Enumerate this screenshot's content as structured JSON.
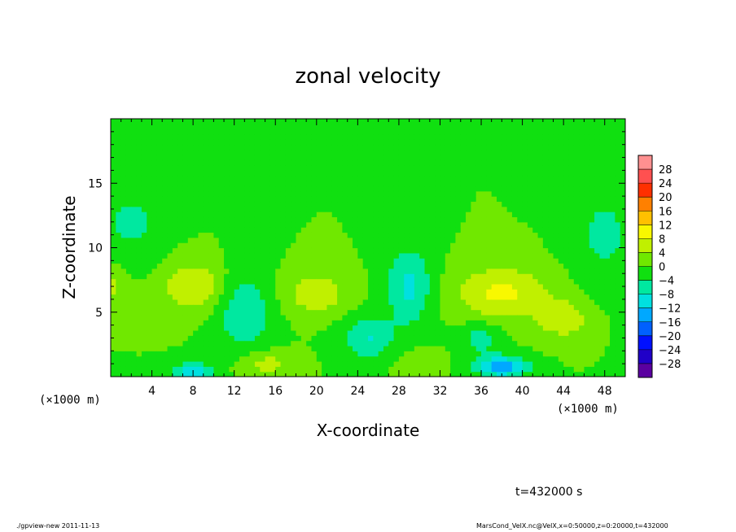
{
  "chart_data": {
    "type": "heatmap",
    "title": "zonal velocity",
    "xlabel": "X-coordinate",
    "ylabel": "Z-coordinate",
    "x_unit_left": "(×1000 m)",
    "x_unit_right": "(×1000 m)",
    "xlim": [
      0,
      50
    ],
    "ylim": [
      0,
      20
    ],
    "x_ticks": [
      4,
      8,
      12,
      16,
      20,
      24,
      28,
      32,
      36,
      40,
      44,
      48
    ],
    "x_tick_labels": [
      "4",
      "8",
      "12",
      "16",
      "20",
      "24",
      "28",
      "32",
      "36",
      "40",
      "44",
      "48"
    ],
    "y_ticks": [
      5,
      10,
      15
    ],
    "y_tick_labels": [
      "5",
      "10",
      "15"
    ],
    "time_label": "t=432000 s",
    "colorbar": {
      "levels": [
        -28,
        -24,
        -20,
        -16,
        -12,
        -8,
        -4,
        0,
        4,
        8,
        12,
        16,
        20,
        24,
        28
      ],
      "labels": [
        "28",
        "24",
        "20",
        "16",
        "12",
        "8",
        "4",
        "0",
        "−4",
        "−8",
        "−12",
        "−16",
        "−20",
        "−24",
        "−28"
      ],
      "colors": [
        "#5a00a0",
        "#2000c8",
        "#0010ff",
        "#0060ff",
        "#00a8ff",
        "#00e0e0",
        "#00e8a0",
        "#10e010",
        "#70e800",
        "#c0f000",
        "#f8f800",
        "#ffc000",
        "#ff8000",
        "#ff3000",
        "#ff5050",
        "#ff9090"
      ]
    },
    "field_features": [
      {
        "x": 8,
        "z": 7,
        "u": 8,
        "sx": 3,
        "sz": 1.8
      },
      {
        "x": 20,
        "z": 6.5,
        "u": 7,
        "sx": 3,
        "sz": 1.6
      },
      {
        "x": 38,
        "z": 6.5,
        "u": 9,
        "sx": 4.5,
        "sz": 2
      },
      {
        "x": 44,
        "z": 4.5,
        "u": 7,
        "sx": 2.5,
        "sz": 1.5
      },
      {
        "x": 15,
        "z": 1,
        "u": 6,
        "sx": 2.5,
        "sz": 1
      },
      {
        "x": 30,
        "z": 1,
        "u": 4,
        "sx": 2,
        "sz": 1
      },
      {
        "x": 0,
        "z": 7,
        "u": 5,
        "sx": 1.5,
        "sz": 1.5
      },
      {
        "x": 13,
        "z": 5,
        "u": -8,
        "sx": 2.5,
        "sz": 3
      },
      {
        "x": 29,
        "z": 7,
        "u": -9,
        "sx": 2.2,
        "sz": 3
      },
      {
        "x": 25,
        "z": 3,
        "u": -8,
        "sx": 2.5,
        "sz": 1.6
      },
      {
        "x": 8,
        "z": 0.4,
        "u": -12,
        "sx": 1.8,
        "sz": 0.7
      },
      {
        "x": 38,
        "z": 0.8,
        "u": -15,
        "sx": 2.5,
        "sz": 0.8
      },
      {
        "x": 2,
        "z": 12,
        "u": -5,
        "sx": 3,
        "sz": 3
      },
      {
        "x": 48,
        "z": 11,
        "u": -5,
        "sx": 3,
        "sz": 4
      },
      {
        "x": 36,
        "z": 3,
        "u": -6,
        "sx": 2,
        "sz": 1.2
      }
    ]
  },
  "footer": {
    "left": "./gpview-new  2011-11-13",
    "right": "MarsCond_VelX.nc@VelX,x=0:50000,z=0:20000,t=432000"
  }
}
